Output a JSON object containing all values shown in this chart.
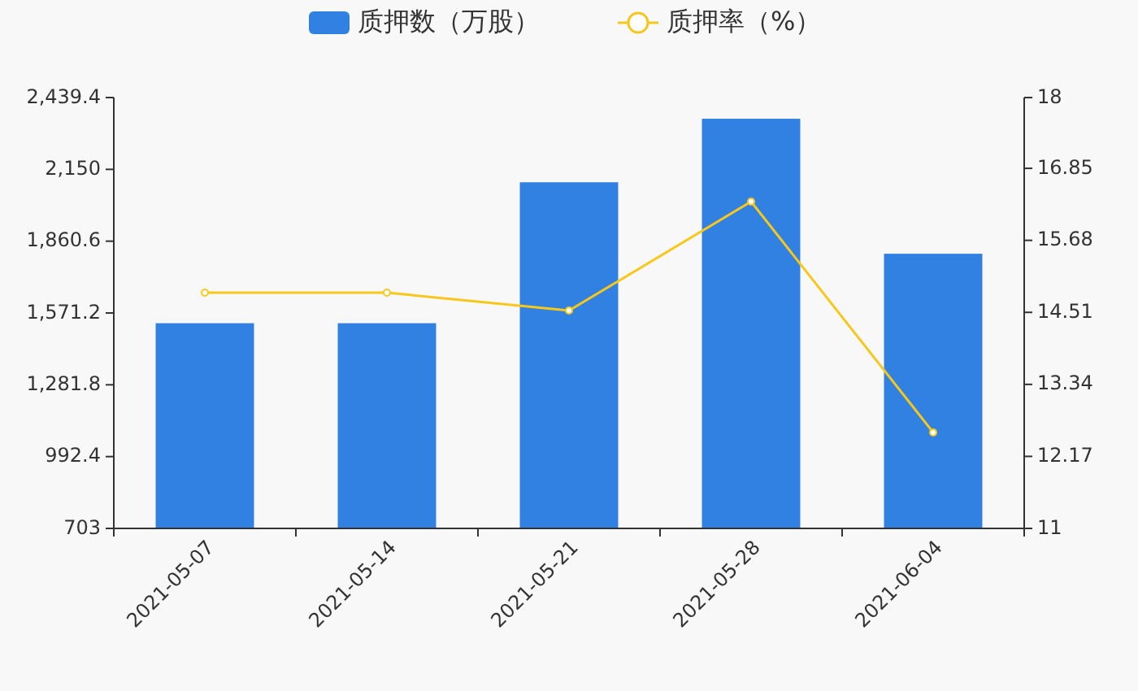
{
  "chart_data": {
    "type": "bar",
    "categories": [
      "2021-05-07",
      "2021-05-14",
      "2021-05-21",
      "2021-05-28",
      "2021-06-04"
    ],
    "series": [
      {
        "name": "质押数（万股）",
        "color": "#3181e2",
        "values": [
          1530,
          1530,
          2098,
          2354,
          1810
        ]
      },
      {
        "name": "质押率（%）",
        "type": "line",
        "axis": "y2",
        "color": "#f7c71b",
        "values": [
          14.83,
          14.83,
          14.54,
          16.31,
          12.56
        ]
      }
    ],
    "ylim": [
      703,
      2439.4
    ],
    "yticks": [
      703,
      {
        "value": 992.4,
        "label": "992.4"
      },
      {
        "value": 1281.8,
        "label": "1,281.8"
      },
      {
        "value": 1571.2,
        "label": "1,571.2"
      },
      {
        "value": 1860.6,
        "label": "1,860.6"
      },
      {
        "value": 2150,
        "label": "2,150"
      },
      {
        "value": 2439.4,
        "label": "2,439.4"
      }
    ],
    "y2lim": [
      11,
      18
    ],
    "y2ticks": [
      11,
      12.17,
      13.34,
      14.51,
      15.68,
      16.85,
      18
    ],
    "legend": "top",
    "marker": "circle",
    "grid": false
  }
}
